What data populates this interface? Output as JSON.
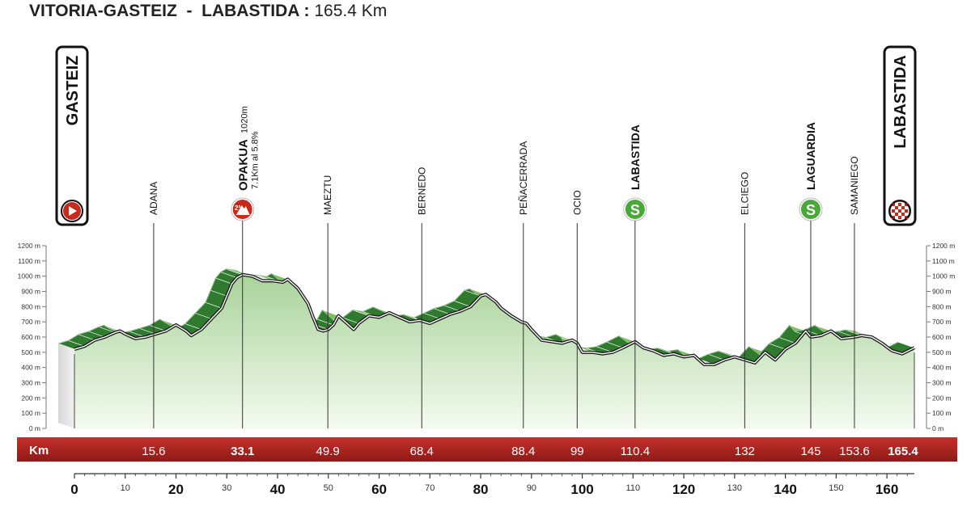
{
  "header": {
    "start": "VITORIA-GASTEIZ",
    "separator": "-",
    "finish": "LABASTIDA :",
    "distance": "165.4 Km"
  },
  "colors": {
    "profile_fill": "#cfe6c4",
    "climb_dark": "#2f7a2f",
    "climb_light": "#7fbf63",
    "km_band": "#b2201d",
    "marker_red": "#c8291c",
    "sprint_green": "#4aa838"
  },
  "chart_data": {
    "type": "area",
    "title": "",
    "xlabel": "",
    "ylabel": "",
    "xlim": [
      0,
      165.4
    ],
    "ylim": [
      0,
      1200
    ],
    "y_ticks": [
      0,
      100,
      200,
      300,
      400,
      500,
      600,
      700,
      800,
      900,
      1000,
      1100,
      1200
    ],
    "y_tick_labels": [
      "0 m",
      "100 m",
      "200 m",
      "300 m",
      "400 m",
      "500 m",
      "600 m",
      "700 m",
      "800 m",
      "900 m",
      "1000 m",
      "1100 m",
      "1200 m"
    ],
    "x_major_ticks": [
      0,
      20,
      40,
      60,
      80,
      100,
      120,
      140,
      160
    ],
    "x_minor_ticks": [
      10,
      30,
      50,
      70,
      90,
      110,
      130,
      150
    ],
    "band_label": "Km",
    "profile": {
      "x": [
        0,
        2,
        4,
        6,
        8,
        9,
        10,
        12,
        14,
        16,
        18,
        20,
        22,
        23,
        25,
        27,
        29,
        30,
        31,
        32,
        33.1,
        35,
        37,
        39,
        41,
        42,
        44,
        46,
        47,
        48,
        49,
        50,
        51,
        52,
        54,
        55,
        56,
        58,
        60,
        62,
        64,
        66,
        68,
        70,
        72,
        74,
        76,
        78,
        80,
        81,
        83,
        84,
        86,
        88,
        89,
        90,
        92,
        94,
        96,
        98,
        99,
        100,
        102,
        104,
        106,
        108,
        110.4,
        112,
        114,
        116,
        118,
        120,
        122,
        124,
        126,
        128,
        130,
        132,
        134,
        136,
        138,
        140,
        142,
        144,
        145,
        147,
        149,
        151,
        153.6,
        155,
        157,
        159,
        161,
        163,
        165.4
      ],
      "y": [
        520,
        540,
        580,
        600,
        630,
        640,
        620,
        590,
        600,
        620,
        640,
        680,
        640,
        610,
        650,
        720,
        790,
        870,
        950,
        990,
        1010,
        1000,
        970,
        970,
        960,
        980,
        920,
        820,
        730,
        650,
        640,
        650,
        680,
        740,
        680,
        650,
        690,
        740,
        730,
        760,
        730,
        700,
        710,
        690,
        720,
        750,
        770,
        800,
        870,
        880,
        830,
        790,
        740,
        700,
        690,
        650,
        580,
        570,
        560,
        580,
        560,
        500,
        500,
        490,
        500,
        530,
        570,
        530,
        510,
        480,
        490,
        470,
        480,
        420,
        420,
        450,
        470,
        450,
        430,
        500,
        450,
        520,
        560,
        640,
        600,
        610,
        640,
        590,
        600,
        610,
        600,
        560,
        510,
        490,
        530
      ]
    },
    "points": [
      {
        "km": 0,
        "name": "GASTEIZ",
        "km_label": "",
        "type": "start"
      },
      {
        "km": 15.6,
        "name": "ADANA",
        "km_label": "15.6",
        "type": "town"
      },
      {
        "km": 33.1,
        "name": "OPAKUA",
        "km_label": "33.1",
        "type": "climb",
        "alt": "1020m",
        "detail": "7.1Km al 5.8%"
      },
      {
        "km": 49.9,
        "name": "MAEZTU",
        "km_label": "49.9",
        "type": "town"
      },
      {
        "km": 68.4,
        "name": "BERNEDO",
        "km_label": "68.4",
        "type": "town"
      },
      {
        "km": 88.4,
        "name": "PEÑACERRADA",
        "km_label": "88.4",
        "type": "town"
      },
      {
        "km": 99,
        "name": "OCIO",
        "km_label": "99",
        "type": "town"
      },
      {
        "km": 110.4,
        "name": "LABASTIDA",
        "km_label": "110.4",
        "type": "sprint"
      },
      {
        "km": 132,
        "name": "ELCIEGO",
        "km_label": "132",
        "type": "town"
      },
      {
        "km": 145,
        "name": "LAGUARDIA",
        "km_label": "145",
        "type": "sprint"
      },
      {
        "km": 153.6,
        "name": "SAMANIEGO",
        "km_label": "153.6",
        "type": "town"
      },
      {
        "km": 165.4,
        "name": "LABASTIDA",
        "km_label": "165.4",
        "type": "finish"
      }
    ],
    "climb_badge": "2ª",
    "sprint_badge": "S"
  }
}
